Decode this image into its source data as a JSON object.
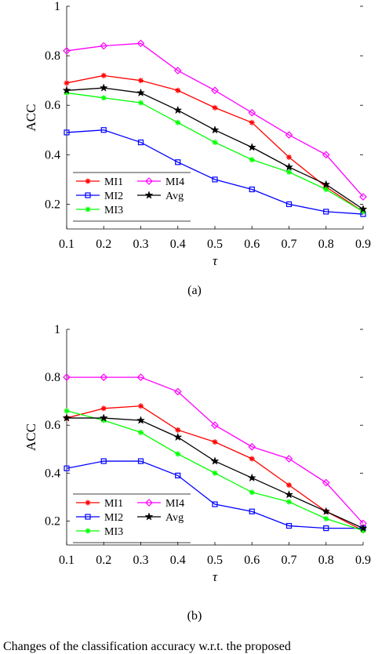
{
  "chart_data": [
    {
      "type": "line",
      "subcaption": "(a)",
      "xlabel": "τ",
      "ylabel": "ACC",
      "x": [
        0.1,
        0.2,
        0.3,
        0.4,
        0.5,
        0.6,
        0.7,
        0.8,
        0.9
      ],
      "xticks": [
        "0.1",
        "0.2",
        "0.3",
        "0.4",
        "0.5",
        "0.6",
        "0.7",
        "0.8",
        "0.9"
      ],
      "yticks": [
        "0.2",
        "0.4",
        "0.6",
        "0.8",
        "1"
      ],
      "xlim": [
        0.1,
        0.9
      ],
      "ylim": [
        0.1,
        1.0
      ],
      "grid": false,
      "legend_position": "bottom-left",
      "series": [
        {
          "name": "MI1",
          "color": "#ff0000",
          "marker": "asterisk",
          "values": [
            0.69,
            0.72,
            0.7,
            0.66,
            0.59,
            0.53,
            0.39,
            0.27,
            0.17
          ]
        },
        {
          "name": "MI2",
          "color": "#0000ff",
          "marker": "square",
          "values": [
            0.49,
            0.5,
            0.45,
            0.37,
            0.3,
            0.26,
            0.2,
            0.17,
            0.16
          ]
        },
        {
          "name": "MI3",
          "color": "#00ff00",
          "marker": "asterisk",
          "values": [
            0.65,
            0.63,
            0.61,
            0.53,
            0.45,
            0.38,
            0.33,
            0.26,
            0.17
          ]
        },
        {
          "name": "MI4",
          "color": "#ff00ff",
          "marker": "diamond",
          "values": [
            0.82,
            0.84,
            0.85,
            0.74,
            0.66,
            0.57,
            0.48,
            0.4,
            0.23
          ]
        },
        {
          "name": "Avg",
          "color": "#000000",
          "marker": "star",
          "values": [
            0.66,
            0.67,
            0.65,
            0.58,
            0.5,
            0.43,
            0.35,
            0.28,
            0.18
          ]
        }
      ]
    },
    {
      "type": "line",
      "subcaption": "(b)",
      "xlabel": "τ",
      "ylabel": "ACC",
      "x": [
        0.1,
        0.2,
        0.3,
        0.4,
        0.5,
        0.6,
        0.7,
        0.8,
        0.9
      ],
      "xticks": [
        "0.1",
        "0.2",
        "0.3",
        "0.4",
        "0.5",
        "0.6",
        "0.7",
        "0.8",
        "0.9"
      ],
      "yticks": [
        "0.2",
        "0.4",
        "0.6",
        "0.8",
        "1"
      ],
      "xlim": [
        0.1,
        0.9
      ],
      "ylim": [
        0.1,
        1.0
      ],
      "grid": false,
      "legend_position": "bottom-left",
      "series": [
        {
          "name": "MI1",
          "color": "#ff0000",
          "marker": "asterisk",
          "values": [
            0.63,
            0.67,
            0.68,
            0.58,
            0.53,
            0.46,
            0.35,
            0.24,
            0.16
          ]
        },
        {
          "name": "MI2",
          "color": "#0000ff",
          "marker": "square",
          "values": [
            0.42,
            0.45,
            0.45,
            0.39,
            0.27,
            0.24,
            0.18,
            0.17,
            0.17
          ]
        },
        {
          "name": "MI3",
          "color": "#00ff00",
          "marker": "asterisk",
          "values": [
            0.66,
            0.62,
            0.57,
            0.48,
            0.4,
            0.32,
            0.28,
            0.21,
            0.16
          ]
        },
        {
          "name": "MI4",
          "color": "#ff00ff",
          "marker": "diamond",
          "values": [
            0.8,
            0.8,
            0.8,
            0.74,
            0.6,
            0.51,
            0.46,
            0.36,
            0.19
          ]
        },
        {
          "name": "Avg",
          "color": "#000000",
          "marker": "star",
          "values": [
            0.63,
            0.63,
            0.62,
            0.55,
            0.45,
            0.38,
            0.31,
            0.24,
            0.17
          ]
        }
      ]
    }
  ],
  "caption_fragment": "Changes of the classification accuracy w.r.t. the proposed"
}
